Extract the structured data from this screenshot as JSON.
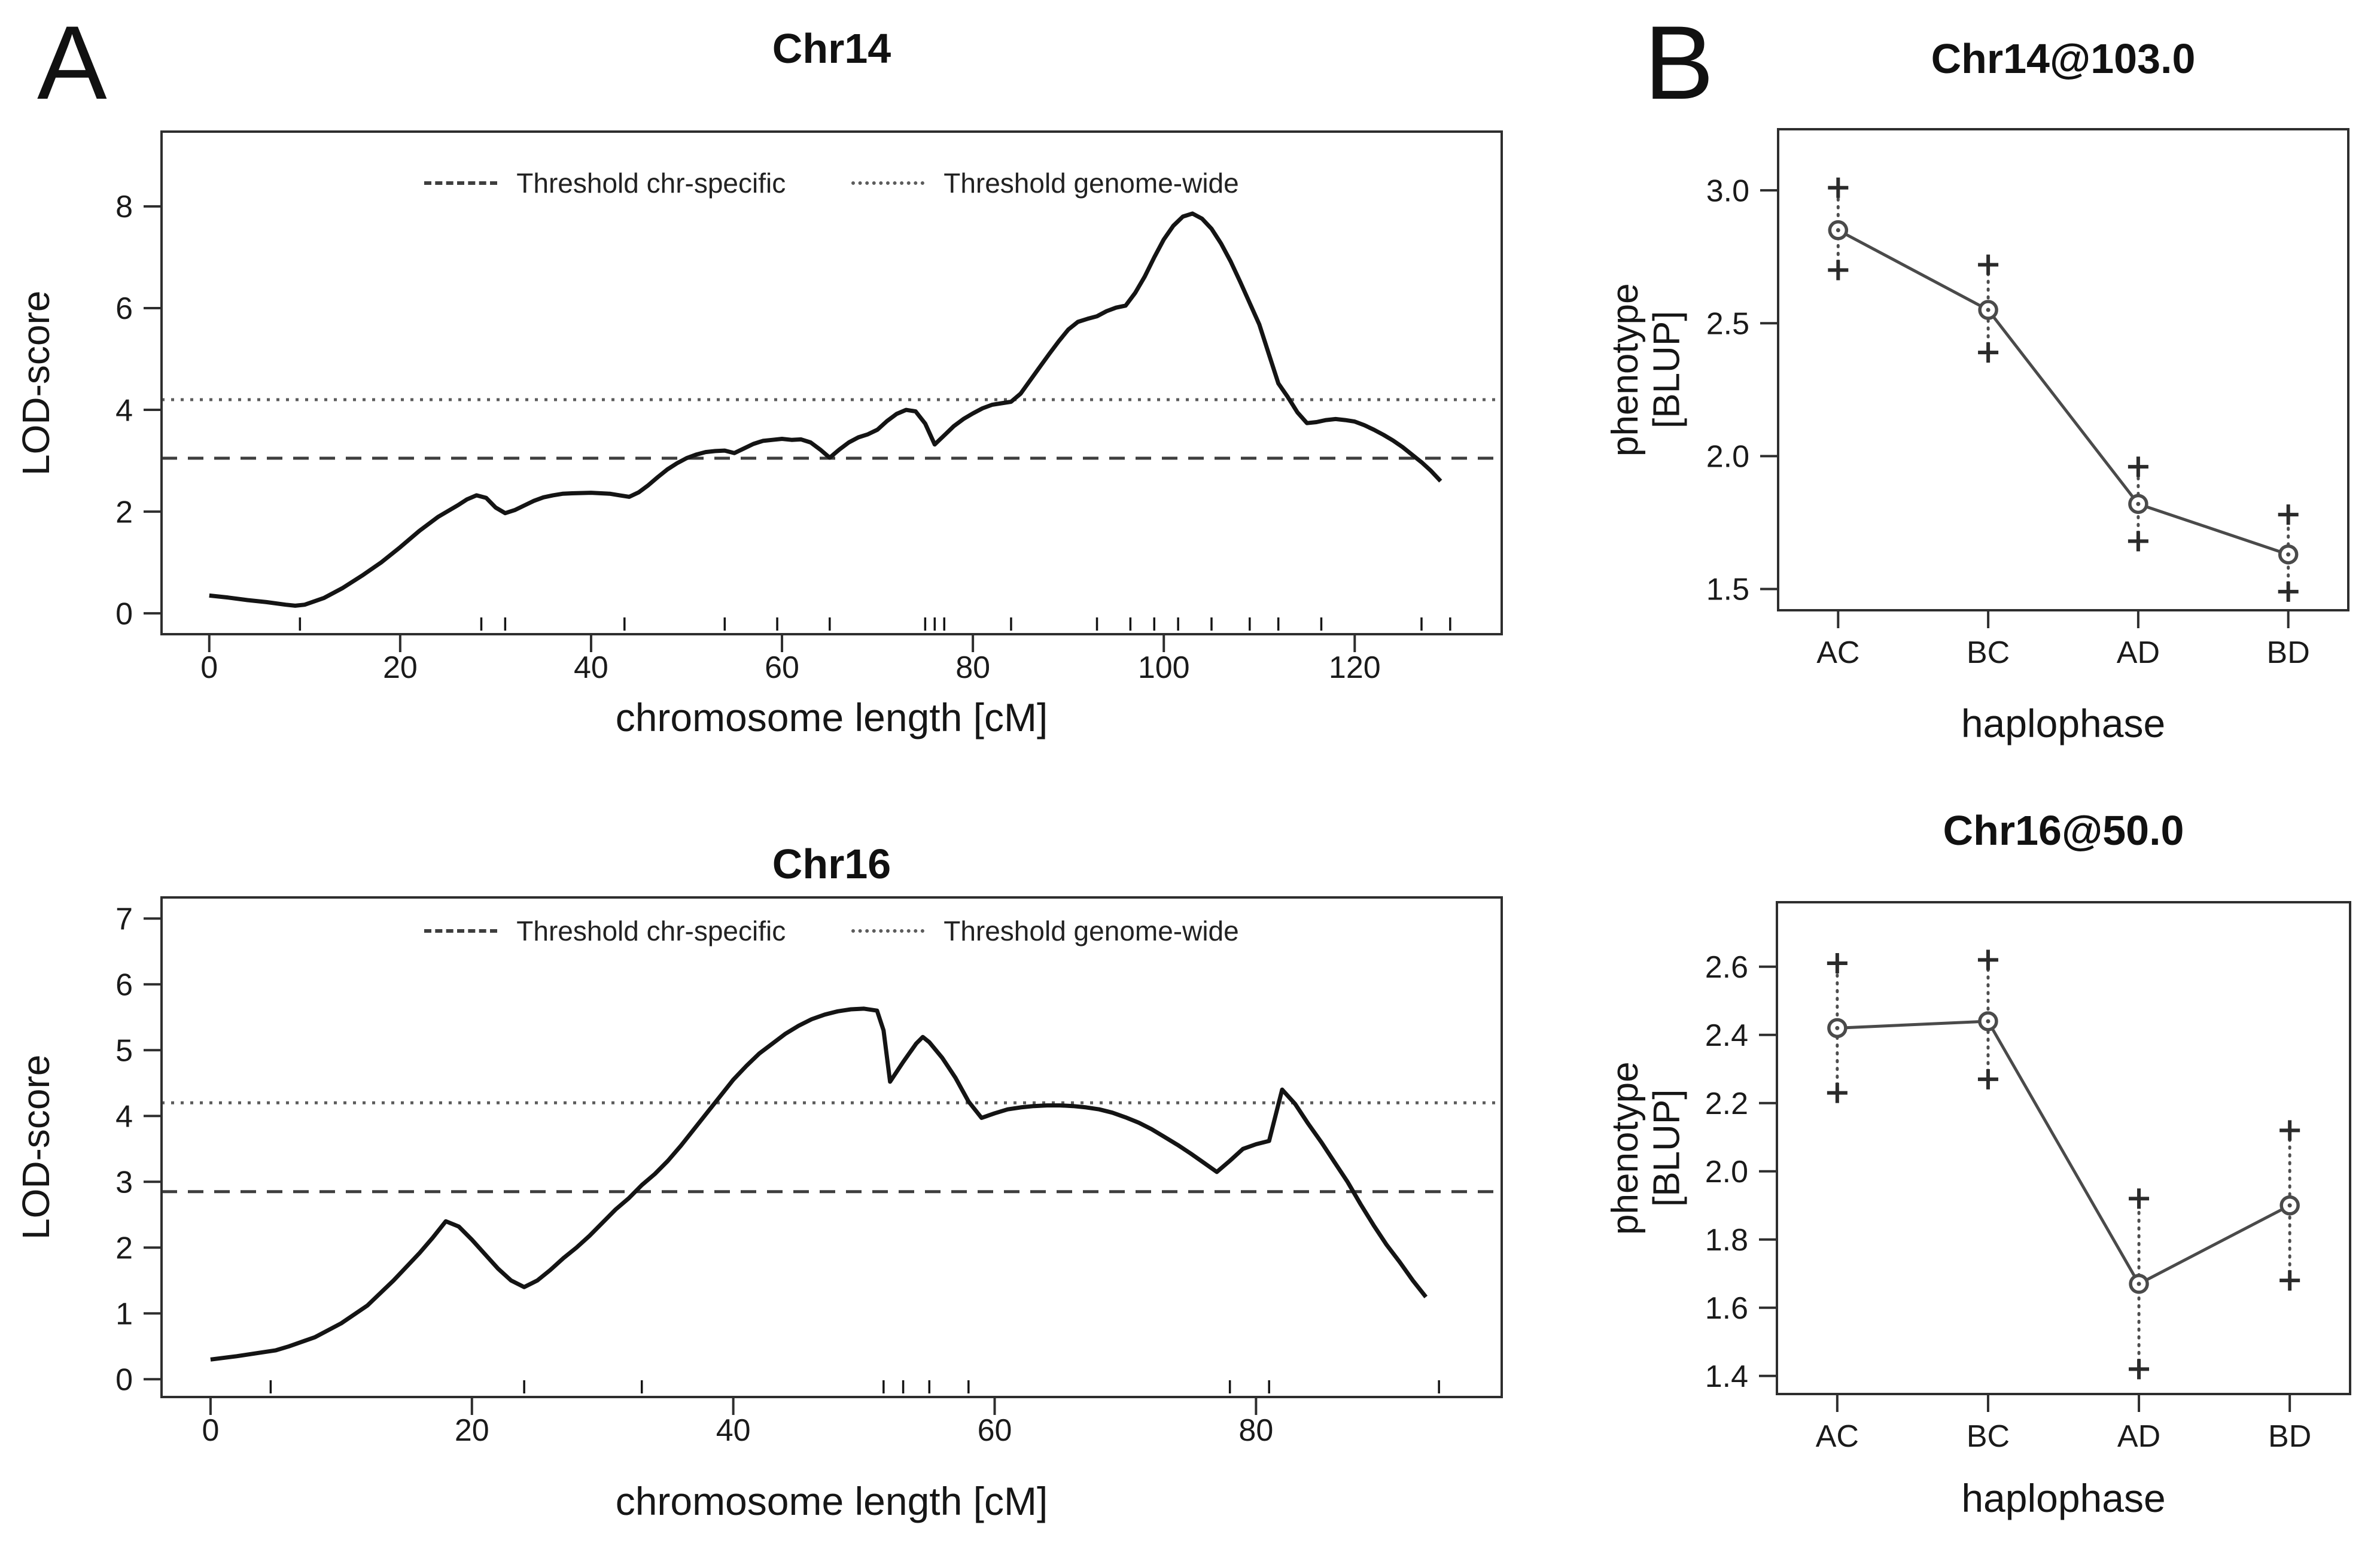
{
  "panel_labels": {
    "a": "A",
    "b": "B"
  },
  "colors": {
    "background": "#ffffff",
    "text": "#1a1a1a",
    "curve": "#141414",
    "box_border": "#2e2e2e",
    "threshold_dashed": "#3e3e3e",
    "threshold_dotted": "#5c5c5c",
    "effect_line": "#4a4a4a",
    "marker_plus": "#2b2b2b",
    "marker_circle": "#4a4a4a",
    "ci_dotted": "#4d4d4d"
  },
  "chart_data": [
    {
      "id": "chr14-lod",
      "type": "line",
      "title": "Chr14",
      "xlabel": "chromosome length [cM]",
      "ylabel": "LOD-score",
      "legend": [
        {
          "label": "Threshold chr-specific",
          "style": "dashed"
        },
        {
          "label": "Threshold genome-wide",
          "style": "dotted"
        }
      ],
      "xlim": [
        -5,
        135.4
      ],
      "ylim": [
        -0.41,
        9.47
      ],
      "xticks": [
        0,
        20,
        40,
        60,
        80,
        100,
        120
      ],
      "xtick_labels": [
        "0",
        "20",
        "40",
        "60",
        "80",
        "100",
        "120"
      ],
      "yticks": [
        0,
        2,
        4,
        6,
        8
      ],
      "ytick_labels": [
        "0",
        "2",
        "4",
        "6",
        "8"
      ],
      "thresholds": {
        "chr_specific": 3.05,
        "genome_wide": 4.2
      },
      "marker_positions_cM": [
        9.5,
        28.5,
        31,
        43.5,
        54,
        59.5,
        65,
        75,
        76,
        77,
        84,
        93,
        96.5,
        99,
        101.5,
        105,
        109,
        112,
        116.5,
        127,
        130
      ],
      "curve": [
        [
          0,
          0.35
        ],
        [
          2,
          0.31
        ],
        [
          4,
          0.26
        ],
        [
          6,
          0.22
        ],
        [
          8,
          0.17
        ],
        [
          9,
          0.15
        ],
        [
          10,
          0.17
        ],
        [
          12,
          0.3
        ],
        [
          14,
          0.5
        ],
        [
          16,
          0.74
        ],
        [
          18,
          1.0
        ],
        [
          20,
          1.3
        ],
        [
          22,
          1.62
        ],
        [
          24,
          1.9
        ],
        [
          26,
          2.12
        ],
        [
          27,
          2.24
        ],
        [
          28,
          2.32
        ],
        [
          29,
          2.27
        ],
        [
          30,
          2.08
        ],
        [
          31,
          1.97
        ],
        [
          32,
          2.03
        ],
        [
          33,
          2.12
        ],
        [
          34,
          2.21
        ],
        [
          35,
          2.28
        ],
        [
          36,
          2.32
        ],
        [
          37,
          2.35
        ],
        [
          38,
          2.36
        ],
        [
          40,
          2.37
        ],
        [
          42,
          2.35
        ],
        [
          43,
          2.32
        ],
        [
          44,
          2.29
        ],
        [
          45,
          2.38
        ],
        [
          46,
          2.52
        ],
        [
          47,
          2.68
        ],
        [
          48,
          2.83
        ],
        [
          49,
          2.95
        ],
        [
          50,
          3.05
        ],
        [
          51,
          3.12
        ],
        [
          52,
          3.17
        ],
        [
          53,
          3.19
        ],
        [
          54,
          3.2
        ],
        [
          55,
          3.15
        ],
        [
          56,
          3.24
        ],
        [
          57,
          3.33
        ],
        [
          58,
          3.39
        ],
        [
          59,
          3.41
        ],
        [
          60,
          3.43
        ],
        [
          61,
          3.41
        ],
        [
          62,
          3.42
        ],
        [
          63,
          3.36
        ],
        [
          64,
          3.22
        ],
        [
          65,
          3.06
        ],
        [
          66,
          3.22
        ],
        [
          67,
          3.36
        ],
        [
          68,
          3.46
        ],
        [
          69,
          3.52
        ],
        [
          70,
          3.61
        ],
        [
          71,
          3.78
        ],
        [
          72,
          3.92
        ],
        [
          73,
          4.0
        ],
        [
          74,
          3.97
        ],
        [
          75,
          3.73
        ],
        [
          76,
          3.32
        ],
        [
          77,
          3.5
        ],
        [
          78,
          3.68
        ],
        [
          79,
          3.82
        ],
        [
          80,
          3.93
        ],
        [
          81,
          4.03
        ],
        [
          82,
          4.1
        ],
        [
          83,
          4.13
        ],
        [
          84,
          4.16
        ],
        [
          85,
          4.32
        ],
        [
          86,
          4.58
        ],
        [
          87,
          4.84
        ],
        [
          88,
          5.1
        ],
        [
          89,
          5.35
        ],
        [
          90,
          5.58
        ],
        [
          91,
          5.73
        ],
        [
          92,
          5.79
        ],
        [
          93,
          5.84
        ],
        [
          94,
          5.94
        ],
        [
          95,
          6.01
        ],
        [
          96,
          6.05
        ],
        [
          97,
          6.3
        ],
        [
          98,
          6.62
        ],
        [
          99,
          7.0
        ],
        [
          100,
          7.35
        ],
        [
          101,
          7.62
        ],
        [
          102,
          7.8
        ],
        [
          103,
          7.86
        ],
        [
          104,
          7.76
        ],
        [
          105,
          7.56
        ],
        [
          106,
          7.27
        ],
        [
          107,
          6.92
        ],
        [
          108,
          6.52
        ],
        [
          109,
          6.1
        ],
        [
          110,
          5.68
        ],
        [
          111,
          5.1
        ],
        [
          112,
          4.52
        ],
        [
          113,
          4.25
        ],
        [
          114,
          3.95
        ],
        [
          115,
          3.74
        ],
        [
          116,
          3.76
        ],
        [
          117,
          3.8
        ],
        [
          118,
          3.82
        ],
        [
          119,
          3.8
        ],
        [
          120,
          3.77
        ],
        [
          121,
          3.7
        ],
        [
          122,
          3.61
        ],
        [
          123,
          3.51
        ],
        [
          124,
          3.4
        ],
        [
          125,
          3.27
        ],
        [
          126,
          3.12
        ],
        [
          127,
          2.97
        ],
        [
          128,
          2.8
        ],
        [
          129,
          2.6
        ]
      ]
    },
    {
      "id": "chr16-lod",
      "type": "line",
      "title": "Chr16",
      "xlabel": "chromosome length [cM]",
      "ylabel": "LOD-score",
      "legend": [
        {
          "label": "Threshold chr-specific",
          "style": "dashed"
        },
        {
          "label": "Threshold genome-wide",
          "style": "dotted"
        }
      ],
      "xlim": [
        -3.75,
        98.8
      ],
      "ylim": [
        -0.27,
        7.32
      ],
      "xticks": [
        0,
        20,
        40,
        60,
        80
      ],
      "xtick_labels": [
        "0",
        "20",
        "40",
        "60",
        "80"
      ],
      "yticks": [
        0,
        1,
        2,
        3,
        4,
        5,
        6,
        7
      ],
      "ytick_labels": [
        "0",
        "1",
        "2",
        "3",
        "4",
        "5",
        "6",
        "7"
      ],
      "thresholds": {
        "chr_specific": 2.85,
        "genome_wide": 4.2
      },
      "marker_positions_cM": [
        4.6,
        24,
        33,
        51.5,
        53,
        55,
        58,
        78,
        81,
        94
      ],
      "curve": [
        [
          0,
          0.3
        ],
        [
          2,
          0.35
        ],
        [
          4,
          0.41
        ],
        [
          5,
          0.44
        ],
        [
          6,
          0.5
        ],
        [
          8,
          0.64
        ],
        [
          10,
          0.85
        ],
        [
          12,
          1.12
        ],
        [
          14,
          1.5
        ],
        [
          16,
          1.92
        ],
        [
          17,
          2.15
        ],
        [
          18,
          2.4
        ],
        [
          19,
          2.32
        ],
        [
          20,
          2.12
        ],
        [
          21,
          1.9
        ],
        [
          22,
          1.68
        ],
        [
          23,
          1.5
        ],
        [
          24,
          1.4
        ],
        [
          25,
          1.5
        ],
        [
          26,
          1.66
        ],
        [
          27,
          1.84
        ],
        [
          28,
          2.0
        ],
        [
          29,
          2.18
        ],
        [
          30,
          2.38
        ],
        [
          31,
          2.58
        ],
        [
          32,
          2.75
        ],
        [
          33,
          2.95
        ],
        [
          34,
          3.12
        ],
        [
          35,
          3.32
        ],
        [
          36,
          3.55
        ],
        [
          37,
          3.8
        ],
        [
          38,
          4.05
        ],
        [
          39,
          4.3
        ],
        [
          40,
          4.55
        ],
        [
          41,
          4.76
        ],
        [
          42,
          4.95
        ],
        [
          43,
          5.1
        ],
        [
          44,
          5.25
        ],
        [
          45,
          5.37
        ],
        [
          46,
          5.47
        ],
        [
          47,
          5.54
        ],
        [
          48,
          5.59
        ],
        [
          49,
          5.62
        ],
        [
          50,
          5.63
        ],
        [
          51,
          5.6
        ],
        [
          51.5,
          5.3
        ],
        [
          52,
          4.52
        ],
        [
          53,
          4.82
        ],
        [
          54,
          5.1
        ],
        [
          54.5,
          5.2
        ],
        [
          55,
          5.12
        ],
        [
          56,
          4.88
        ],
        [
          57,
          4.58
        ],
        [
          58,
          4.22
        ],
        [
          59,
          3.97
        ],
        [
          60,
          4.04
        ],
        [
          61,
          4.1
        ],
        [
          62,
          4.13
        ],
        [
          63,
          4.15
        ],
        [
          64,
          4.16
        ],
        [
          65,
          4.16
        ],
        [
          66,
          4.15
        ],
        [
          67,
          4.13
        ],
        [
          68,
          4.1
        ],
        [
          69,
          4.05
        ],
        [
          70,
          3.98
        ],
        [
          71,
          3.9
        ],
        [
          72,
          3.8
        ],
        [
          73,
          3.68
        ],
        [
          74,
          3.56
        ],
        [
          75,
          3.43
        ],
        [
          76,
          3.29
        ],
        [
          77,
          3.15
        ],
        [
          78,
          3.32
        ],
        [
          79,
          3.5
        ],
        [
          80,
          3.57
        ],
        [
          81,
          3.62
        ],
        [
          82,
          4.4
        ],
        [
          83,
          4.18
        ],
        [
          84,
          3.88
        ],
        [
          85,
          3.6
        ],
        [
          86,
          3.3
        ],
        [
          87,
          3.0
        ],
        [
          88,
          2.66
        ],
        [
          89,
          2.34
        ],
        [
          90,
          2.04
        ],
        [
          91,
          1.78
        ],
        [
          92,
          1.5
        ],
        [
          93,
          1.25
        ]
      ]
    },
    {
      "id": "chr14-effect",
      "type": "scatter",
      "title": "Chr14@103.0",
      "xlabel": "haplophase",
      "ylabel_line1": "phenotype",
      "ylabel_line2": "[BLUP]",
      "categories": [
        "AC",
        "BC",
        "AD",
        "BD"
      ],
      "means": [
        2.85,
        2.55,
        1.82,
        1.63
      ],
      "ci_upper": [
        3.01,
        2.72,
        1.96,
        1.78
      ],
      "ci_lower": [
        2.7,
        2.39,
        1.68,
        1.49
      ],
      "xlim": [
        0.6,
        4.4
      ],
      "ylim": [
        1.42,
        3.23
      ],
      "yticks": [
        1.5,
        2.0,
        2.5,
        3.0
      ],
      "ytick_labels": [
        "1.5",
        "2.0",
        "2.5",
        "3.0"
      ]
    },
    {
      "id": "chr16-effect",
      "type": "scatter",
      "title": "Chr16@50.0",
      "xlabel": "haplophase",
      "ylabel_line1": "phenotype",
      "ylabel_line2": "[BLUP]",
      "categories": [
        "AC",
        "BC",
        "AD",
        "BD"
      ],
      "means": [
        2.42,
        2.44,
        1.67,
        1.9
      ],
      "ci_upper": [
        2.61,
        2.62,
        1.92,
        2.12
      ],
      "ci_lower": [
        2.23,
        2.27,
        1.42,
        1.68
      ],
      "xlim": [
        0.6,
        4.4
      ],
      "ylim": [
        1.347,
        2.789
      ],
      "yticks": [
        1.4,
        1.6,
        1.8,
        2.0,
        2.2,
        2.4,
        2.6
      ],
      "ytick_labels": [
        "1.4",
        "1.6",
        "1.8",
        "2.0",
        "2.2",
        "2.4",
        "2.6"
      ]
    }
  ]
}
